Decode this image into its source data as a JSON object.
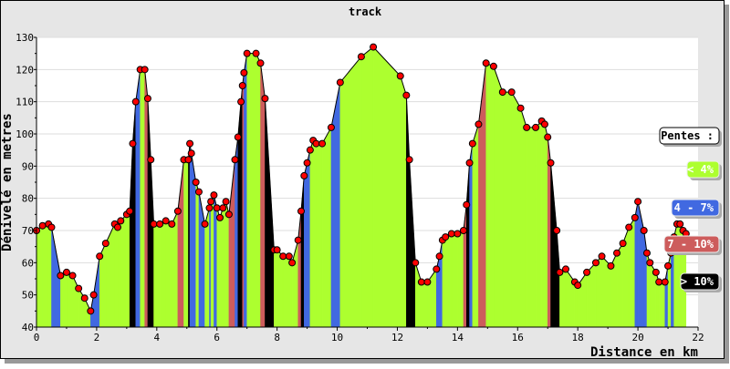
{
  "chart_data": {
    "type": "area",
    "title": "track",
    "xlabel": "Distance en km",
    "ylabel": "Dénivelé en metres",
    "xlim": [
      0,
      22
    ],
    "ylim": [
      40,
      130
    ],
    "xticks": [
      0,
      2,
      4,
      6,
      8,
      10,
      12,
      14,
      16,
      18,
      20,
      22
    ],
    "yticks": [
      40,
      50,
      60,
      70,
      80,
      90,
      100,
      110,
      120,
      130
    ],
    "grid": true,
    "legend_position": "right",
    "legend_title": "Pentes :",
    "legend": [
      {
        "label": "< 4%",
        "color": "#adff2f",
        "text_color": "#ffffff"
      },
      {
        "label": "4 - 7%",
        "color": "#4169e1",
        "text_color": "#ffffff"
      },
      {
        "label": "7 - 10%",
        "color": "#cd5c5c",
        "text_color": "#ffffff"
      },
      {
        "label": "> 10%",
        "color": "#000000",
        "text_color": "#ffffff"
      }
    ],
    "marker_color": "#ff0000",
    "points": [
      [
        0,
        70
      ],
      [
        0.2,
        71.5
      ],
      [
        0.4,
        72
      ],
      [
        0.5,
        71
      ],
      [
        0.8,
        56
      ],
      [
        1.0,
        57
      ],
      [
        1.2,
        56
      ],
      [
        1.4,
        52
      ],
      [
        1.6,
        49
      ],
      [
        1.8,
        45
      ],
      [
        1.9,
        50
      ],
      [
        2.1,
        62
      ],
      [
        2.3,
        66
      ],
      [
        2.6,
        72
      ],
      [
        2.7,
        71
      ],
      [
        2.8,
        73
      ],
      [
        3.0,
        75
      ],
      [
        3.1,
        76
      ],
      [
        3.2,
        97
      ],
      [
        3.3,
        110
      ],
      [
        3.45,
        120
      ],
      [
        3.6,
        120
      ],
      [
        3.7,
        111
      ],
      [
        3.8,
        92
      ],
      [
        3.9,
        72
      ],
      [
        4.1,
        72
      ],
      [
        4.3,
        73
      ],
      [
        4.5,
        72
      ],
      [
        4.7,
        76
      ],
      [
        4.9,
        92
      ],
      [
        5.05,
        92
      ],
      [
        5.1,
        97
      ],
      [
        5.15,
        94
      ],
      [
        5.3,
        85
      ],
      [
        5.4,
        82
      ],
      [
        5.6,
        72
      ],
      [
        5.75,
        77
      ],
      [
        5.8,
        79
      ],
      [
        5.9,
        81
      ],
      [
        6.0,
        77
      ],
      [
        6.1,
        74
      ],
      [
        6.2,
        77
      ],
      [
        6.3,
        79
      ],
      [
        6.4,
        75
      ],
      [
        6.6,
        92
      ],
      [
        6.7,
        99
      ],
      [
        6.8,
        110
      ],
      [
        6.85,
        115
      ],
      [
        6.9,
        119
      ],
      [
        7.0,
        125
      ],
      [
        7.3,
        125
      ],
      [
        7.45,
        122
      ],
      [
        7.6,
        111
      ],
      [
        7.9,
        64
      ],
      [
        8.0,
        64
      ],
      [
        8.2,
        62
      ],
      [
        8.4,
        62
      ],
      [
        8.5,
        60
      ],
      [
        8.7,
        67
      ],
      [
        8.8,
        76
      ],
      [
        8.9,
        87
      ],
      [
        9.0,
        91
      ],
      [
        9.1,
        95
      ],
      [
        9.2,
        98
      ],
      [
        9.3,
        97
      ],
      [
        9.5,
        97
      ],
      [
        9.8,
        102
      ],
      [
        10.1,
        116
      ],
      [
        10.8,
        124
      ],
      [
        11.2,
        127
      ],
      [
        12.1,
        118
      ],
      [
        12.3,
        112
      ],
      [
        12.4,
        92
      ],
      [
        12.6,
        60
      ],
      [
        12.8,
        54
      ],
      [
        13.0,
        54
      ],
      [
        13.3,
        58
      ],
      [
        13.4,
        62
      ],
      [
        13.5,
        67
      ],
      [
        13.6,
        68
      ],
      [
        13.8,
        69
      ],
      [
        14.0,
        69
      ],
      [
        14.2,
        70
      ],
      [
        14.3,
        78
      ],
      [
        14.4,
        91
      ],
      [
        14.5,
        97
      ],
      [
        14.7,
        103
      ],
      [
        14.95,
        122
      ],
      [
        15.2,
        121
      ],
      [
        15.5,
        113
      ],
      [
        15.8,
        113
      ],
      [
        16.1,
        108
      ],
      [
        16.3,
        102
      ],
      [
        16.6,
        102
      ],
      [
        16.8,
        104
      ],
      [
        16.9,
        103
      ],
      [
        17.0,
        99
      ],
      [
        17.1,
        91
      ],
      [
        17.3,
        70
      ],
      [
        17.4,
        57
      ],
      [
        17.6,
        58
      ],
      [
        17.9,
        54
      ],
      [
        18.0,
        53
      ],
      [
        18.3,
        57
      ],
      [
        18.6,
        60
      ],
      [
        18.8,
        62
      ],
      [
        19.1,
        59
      ],
      [
        19.3,
        63
      ],
      [
        19.5,
        66
      ],
      [
        19.7,
        71
      ],
      [
        19.9,
        74
      ],
      [
        20.0,
        79
      ],
      [
        20.2,
        70
      ],
      [
        20.3,
        63
      ],
      [
        20.4,
        60
      ],
      [
        20.6,
        57
      ],
      [
        20.7,
        54
      ],
      [
        20.9,
        54
      ],
      [
        21.0,
        59
      ],
      [
        21.1,
        63
      ],
      [
        21.2,
        68
      ],
      [
        21.3,
        72
      ],
      [
        21.4,
        72
      ],
      [
        21.5,
        70
      ],
      [
        21.6,
        69
      ]
    ]
  }
}
